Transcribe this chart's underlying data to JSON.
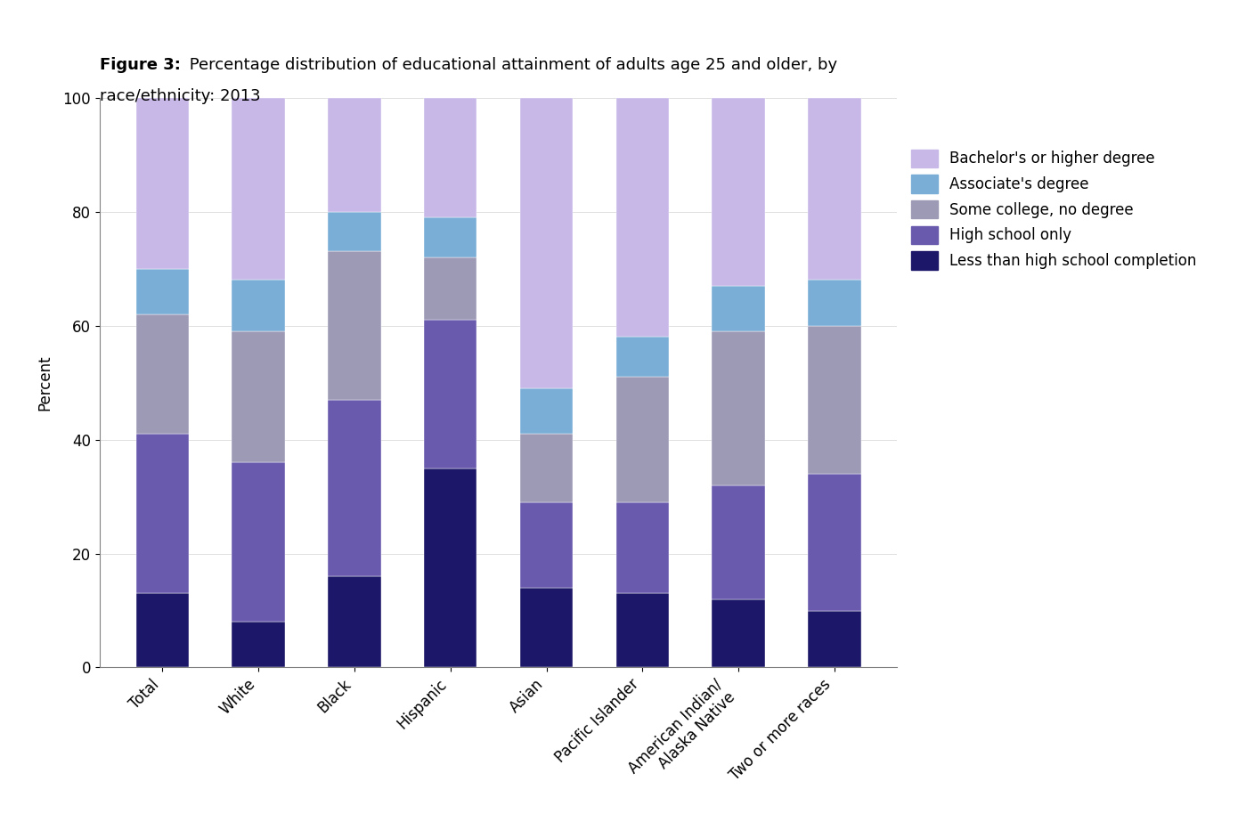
{
  "categories": [
    "Total",
    "White",
    "Black",
    "Hispanic",
    "Asian",
    "Pacific Islander",
    "American Indian/\nAlaska Native",
    "Two or more races"
  ],
  "series": {
    "Less than high school completion": [
      13,
      8,
      16,
      35,
      14,
      13,
      12,
      10
    ],
    "High school only": [
      28,
      28,
      31,
      26,
      15,
      16,
      20,
      24
    ],
    "Some college, no degree": [
      21,
      23,
      26,
      11,
      12,
      22,
      27,
      26
    ],
    "Associate's degree": [
      8,
      9,
      7,
      7,
      8,
      7,
      8,
      8
    ],
    "Bachelor's or higher degree": [
      30,
      32,
      20,
      21,
      51,
      42,
      33,
      32
    ]
  },
  "colors": {
    "Less than high school completion": "#1c1768",
    "High school only": "#6a5aad",
    "Some college, no degree": "#9c9ab5",
    "Associate's degree": "#7aaed6",
    "Bachelor's or higher degree": "#c8b8e8"
  },
  "legend_order": [
    "Bachelor's or higher degree",
    "Associate's degree",
    "Some college, no degree",
    "High school only",
    "Less than high school completion"
  ],
  "title_bold": "Figure 3:",
  "title_rest": " Percentage distribution of educational attainment of adults age 25 and older, by\nrace/ethnicity: 2013",
  "ylabel": "Percent",
  "ylim": [
    0,
    100
  ],
  "yticks": [
    0,
    20,
    40,
    60,
    80,
    100
  ],
  "fig_width": 13.99,
  "fig_height": 9.14,
  "bar_width": 0.55
}
